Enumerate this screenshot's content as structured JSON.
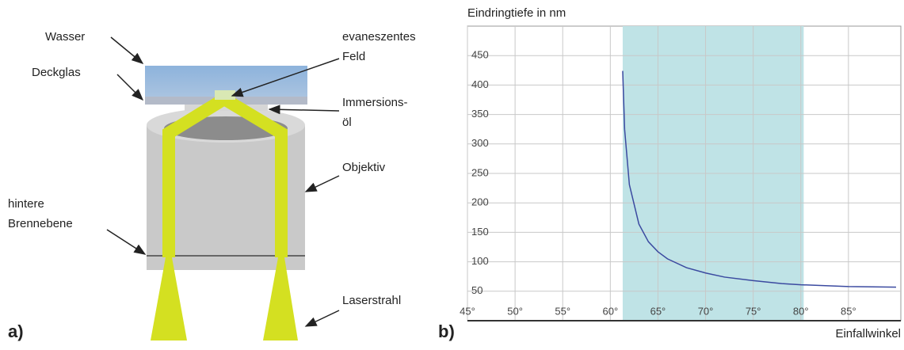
{
  "diagram": {
    "panel_label": "a)",
    "labels": [
      [
        "Wasser"
      ],
      [
        "Deckglas"
      ],
      [
        "evaneszentes",
        "Feld"
      ],
      [
        "Immersions-",
        "öl"
      ],
      [
        "Objektiv"
      ],
      [
        "hintere",
        "Brennebene"
      ],
      [
        "Laserstrahl"
      ]
    ]
  },
  "chart_data": {
    "type": "line",
    "panel_label": "b)",
    "y_label": "Eindringtiefe in nm",
    "x_label": "Einfallwinkel",
    "x": [
      61.3,
      61.5,
      62,
      63,
      64,
      65,
      66,
      68,
      70,
      72,
      75,
      78,
      80,
      85,
      90
    ],
    "values": [
      424,
      325,
      231,
      164,
      134,
      117,
      105,
      90,
      81,
      74,
      68,
      63,
      61,
      58,
      57
    ],
    "color": "#3b4aa0",
    "shaded_range": [
      61.3,
      80.3
    ],
    "shade_color": "#bfe3e6",
    "xlim": [
      45,
      90.5
    ],
    "ylim": [
      0,
      500
    ],
    "xticks": [
      {
        "value": 45,
        "label": "45°"
      },
      {
        "value": 50,
        "label": "50°"
      },
      {
        "value": 55,
        "label": "55°"
      },
      {
        "value": 60,
        "label": "60°"
      },
      {
        "value": 65,
        "label": "65°"
      },
      {
        "value": 70,
        "label": "70°"
      },
      {
        "value": 75,
        "label": "75°"
      },
      {
        "value": 80,
        "label": "80°"
      },
      {
        "value": 85,
        "label": "85°"
      }
    ],
    "yticks": [
      50,
      100,
      150,
      200,
      250,
      300,
      350,
      400,
      450
    ],
    "grid": true
  }
}
